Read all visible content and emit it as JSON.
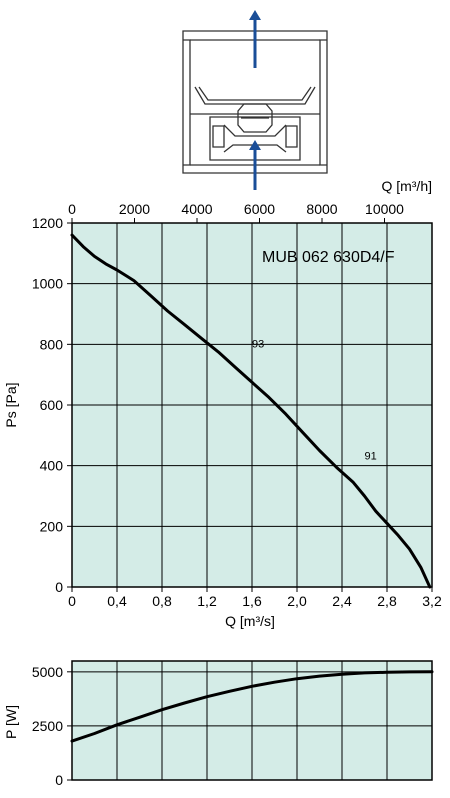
{
  "colors": {
    "plot_background": "#d4ece7",
    "grid": "#000000",
    "curve": "#000000",
    "flow_arrow": "#1a4e98",
    "diagram_stroke": "#333333"
  },
  "diagram": {
    "flow_direction": "up",
    "arrow_icon": "arrow-up-icon"
  },
  "chart_data": [
    {
      "type": "line",
      "title": "MUB 062 630D4/F",
      "xlabel": "Q [m³/s]",
      "x2label": "Q [m³/h]",
      "ylabel": "Ps [Pa]",
      "xlim": [
        0,
        3.2
      ],
      "ylim": [
        0,
        1200
      ],
      "x2lim": [
        0,
        11520
      ],
      "xticks": [
        "0",
        "0,4",
        "0,8",
        "1,2",
        "1,6",
        "2,0",
        "2,4",
        "2,8",
        "3,2"
      ],
      "x2ticks": [
        "0",
        "2000",
        "4000",
        "6000",
        "8000",
        "10000"
      ],
      "yticks": [
        "0",
        "200",
        "400",
        "600",
        "800",
        "1000",
        "1200"
      ],
      "grid": true,
      "series": [
        {
          "x": [
            0.0,
            0.1,
            0.2,
            0.3,
            0.4,
            0.55,
            0.7,
            0.85,
            1.0,
            1.15,
            1.3,
            1.45,
            1.6,
            1.75,
            1.9,
            2.05,
            2.2,
            2.35,
            2.5,
            2.6,
            2.7,
            2.8,
            2.9,
            3.0,
            3.1,
            3.18
          ],
          "y": [
            1160,
            1122,
            1090,
            1065,
            1045,
            1010,
            960,
            910,
            865,
            820,
            775,
            725,
            675,
            625,
            570,
            510,
            450,
            395,
            345,
            300,
            250,
            210,
            170,
            125,
            65,
            0
          ]
        }
      ],
      "annotations": [
        {
          "text": "93",
          "x": 1.6,
          "y": 790
        },
        {
          "text": "91",
          "x": 2.6,
          "y": 420
        }
      ]
    },
    {
      "type": "line",
      "xlabel": "",
      "ylabel": "P [W]",
      "xlim": [
        0,
        3.2
      ],
      "ylim": [
        0,
        5500
      ],
      "yticks": [
        "0",
        "2500",
        "5000"
      ],
      "grid": true,
      "series": [
        {
          "x": [
            0.0,
            0.2,
            0.4,
            0.6,
            0.8,
            1.0,
            1.2,
            1.4,
            1.6,
            1.8,
            2.0,
            2.2,
            2.4,
            2.6,
            2.8,
            3.0,
            3.2
          ],
          "y": [
            1800,
            2150,
            2550,
            2900,
            3250,
            3560,
            3850,
            4100,
            4330,
            4520,
            4680,
            4800,
            4890,
            4950,
            4980,
            4995,
            5000
          ]
        }
      ]
    }
  ]
}
